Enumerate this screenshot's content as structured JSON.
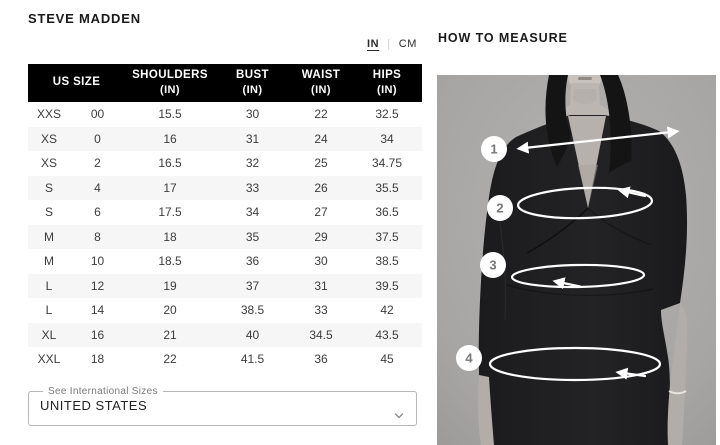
{
  "brand": {
    "title": "STEVE MADDEN"
  },
  "unit_toggle": {
    "in": "IN",
    "cm": "CM",
    "active": "IN"
  },
  "size_table": {
    "corner_header": "US SIZE",
    "columns": [
      {
        "label": "SHOULDERS",
        "unit": "(IN)"
      },
      {
        "label": "BUST",
        "unit": "(IN)"
      },
      {
        "label": "WAIST",
        "unit": "(IN)"
      },
      {
        "label": "HIPS",
        "unit": "(IN)"
      }
    ],
    "rows": [
      [
        "XXS",
        "00",
        "15.5",
        "30",
        "22",
        "32.5"
      ],
      [
        "XS",
        "0",
        "16",
        "31",
        "24",
        "34"
      ],
      [
        "XS",
        "2",
        "16.5",
        "32",
        "25",
        "34.75"
      ],
      [
        "S",
        "4",
        "17",
        "33",
        "26",
        "35.5"
      ],
      [
        "S",
        "6",
        "17.5",
        "34",
        "27",
        "36.5"
      ],
      [
        "M",
        "8",
        "18",
        "35",
        "29",
        "37.5"
      ],
      [
        "M",
        "10",
        "18.5",
        "36",
        "30",
        "38.5"
      ],
      [
        "L",
        "12",
        "19",
        "37",
        "31",
        "39.5"
      ],
      [
        "L",
        "14",
        "20",
        "38.5",
        "33",
        "42"
      ],
      [
        "XL",
        "16",
        "21",
        "40",
        "34.5",
        "43.5"
      ],
      [
        "XXL",
        "18",
        "22",
        "41.5",
        "36",
        "45"
      ]
    ]
  },
  "international": {
    "legend": "See International Sizes",
    "selected": "UNITED STATES"
  },
  "measure": {
    "title": "HOW TO MEASURE",
    "points": [
      "1",
      "2",
      "3",
      "4"
    ]
  },
  "colors": {
    "table_header_bg": "#000000",
    "row_stripe": "#f6f6f6",
    "photo_bg": "#a9a7a5",
    "annotation": "#ffffff"
  }
}
